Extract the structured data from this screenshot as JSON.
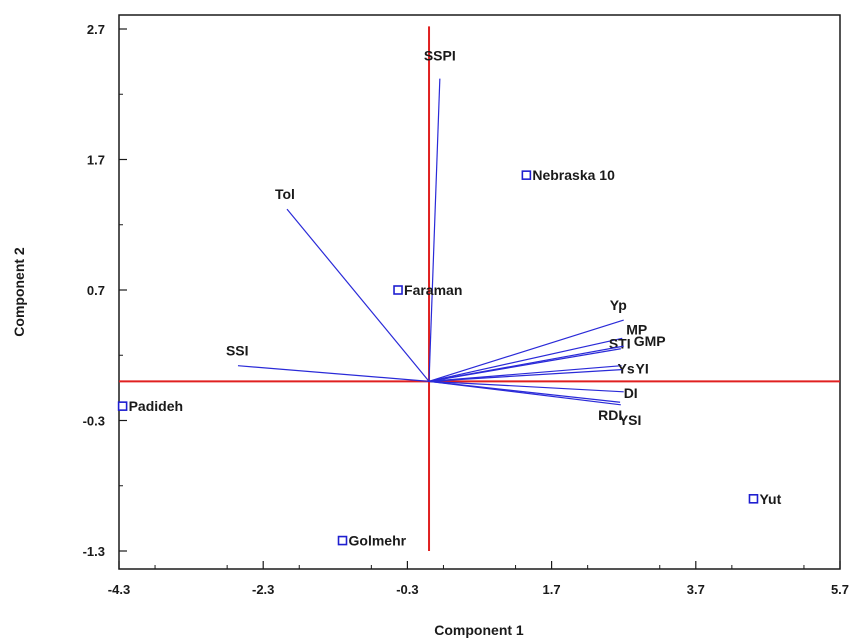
{
  "chart_data": {
    "type": "scatter",
    "subtype": "biplot",
    "xlabel": "Component 1",
    "ylabel": "Component 2",
    "xlim": [
      -4.3,
      5.7
    ],
    "ylim": [
      -1.3,
      2.7
    ],
    "xticks": [
      "-4.3",
      "-2.3",
      "-0.3",
      "1.7",
      "3.7",
      "5.7"
    ],
    "yticks": [
      "-1.3",
      "-0.3",
      "0.7",
      "1.7",
      "2.7"
    ],
    "grid": false,
    "reference_lines": {
      "x": 0.0,
      "y": 0.0,
      "color": "#e02020"
    },
    "vector_color": "#2a2ad8",
    "point_color": "#1f1fd0",
    "points": [
      {
        "label": "Padideh",
        "x": -4.25,
        "y": -0.19
      },
      {
        "label": "Golmehr",
        "x": -1.2,
        "y": -1.22
      },
      {
        "label": "Faraman",
        "x": -0.43,
        "y": 0.7
      },
      {
        "label": "Nebraska 10",
        "x": 1.35,
        "y": 1.58
      },
      {
        "label": "Yut",
        "x": 4.5,
        "y": -0.9
      }
    ],
    "vectors": [
      {
        "label": "SSPI",
        "x": 0.15,
        "y": 2.32
      },
      {
        "label": "Tol",
        "x": -1.97,
        "y": 1.32
      },
      {
        "label": "SSI",
        "x": -2.65,
        "y": 0.12
      },
      {
        "label": "Yp",
        "x": 2.7,
        "y": 0.47
      },
      {
        "label": "MP",
        "x": 2.68,
        "y": 0.33
      },
      {
        "label": "STI",
        "x": 2.66,
        "y": 0.25
      },
      {
        "label": "GMP",
        "x": 2.7,
        "y": 0.27
      },
      {
        "label": "Ys",
        "x": 2.67,
        "y": 0.12
      },
      {
        "label": "YI",
        "x": 2.67,
        "y": 0.09
      },
      {
        "label": "DI",
        "x": 2.7,
        "y": -0.08
      },
      {
        "label": "RDI",
        "x": 2.65,
        "y": -0.16
      },
      {
        "label": "YSI",
        "x": 2.66,
        "y": -0.18
      }
    ]
  }
}
